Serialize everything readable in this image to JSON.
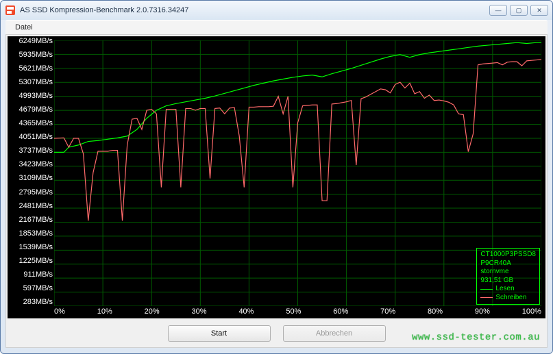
{
  "window": {
    "title": "AS SSD Kompression-Benchmark 2.0.7316.34247",
    "buttons": {
      "minimize": "—",
      "maximize": "▢",
      "close": "✕"
    }
  },
  "menu": {
    "file": "Datei"
  },
  "chart": {
    "type": "line",
    "background_color": "#000000",
    "grid_color": "#005c00",
    "axis_color": "#ffffff",
    "label_fontsize": 11,
    "xlim": [
      0,
      100
    ],
    "xtick_step": 10,
    "ylim": [
      283,
      6249
    ],
    "y_ticks": [
      6249,
      5935,
      5621,
      5307,
      4993,
      4679,
      4365,
      4051,
      3737,
      3423,
      3109,
      2795,
      2481,
      2167,
      1853,
      1539,
      1225,
      911,
      597,
      283
    ],
    "y_unit": "MB/s",
    "x_ticks": [
      0,
      10,
      20,
      30,
      40,
      50,
      60,
      70,
      80,
      90,
      100
    ],
    "x_unit": "%",
    "series": [
      {
        "name": "Lesen",
        "color": "#00ff00",
        "line_width": 1.2,
        "points": [
          [
            0,
            3737
          ],
          [
            2,
            3737
          ],
          [
            3,
            3850
          ],
          [
            5,
            3900
          ],
          [
            7,
            3980
          ],
          [
            9,
            4000
          ],
          [
            11,
            4030
          ],
          [
            13,
            4060
          ],
          [
            15,
            4100
          ],
          [
            17,
            4250
          ],
          [
            19,
            4500
          ],
          [
            21,
            4680
          ],
          [
            23,
            4780
          ],
          [
            25,
            4830
          ],
          [
            27,
            4870
          ],
          [
            29,
            4910
          ],
          [
            31,
            4950
          ],
          [
            33,
            5000
          ],
          [
            35,
            5060
          ],
          [
            37,
            5120
          ],
          [
            39,
            5180
          ],
          [
            41,
            5240
          ],
          [
            43,
            5290
          ],
          [
            45,
            5340
          ],
          [
            47,
            5380
          ],
          [
            49,
            5420
          ],
          [
            51,
            5450
          ],
          [
            53,
            5470
          ],
          [
            55,
            5430
          ],
          [
            57,
            5500
          ],
          [
            59,
            5560
          ],
          [
            61,
            5620
          ],
          [
            63,
            5690
          ],
          [
            65,
            5760
          ],
          [
            67,
            5830
          ],
          [
            69,
            5890
          ],
          [
            71,
            5930
          ],
          [
            73,
            5870
          ],
          [
            75,
            5930
          ],
          [
            77,
            5970
          ],
          [
            79,
            6000
          ],
          [
            81,
            6030
          ],
          [
            83,
            6060
          ],
          [
            85,
            6090
          ],
          [
            87,
            6120
          ],
          [
            89,
            6140
          ],
          [
            91,
            6160
          ],
          [
            93,
            6180
          ],
          [
            95,
            6200
          ],
          [
            97,
            6180
          ],
          [
            99,
            6200
          ],
          [
            100,
            6200
          ]
        ]
      },
      {
        "name": "Schreiben",
        "color": "#ff6a6a",
        "line_width": 1.2,
        "points": [
          [
            0,
            4050
          ],
          [
            2,
            4060
          ],
          [
            3,
            3850
          ],
          [
            4,
            4050
          ],
          [
            5,
            4050
          ],
          [
            6,
            3700
          ],
          [
            7,
            2200
          ],
          [
            8,
            3280
          ],
          [
            9,
            3760
          ],
          [
            10,
            3760
          ],
          [
            11,
            3760
          ],
          [
            12,
            3780
          ],
          [
            13,
            3780
          ],
          [
            14,
            2200
          ],
          [
            15,
            3900
          ],
          [
            16,
            4480
          ],
          [
            17,
            4500
          ],
          [
            18,
            4250
          ],
          [
            19,
            4680
          ],
          [
            20,
            4700
          ],
          [
            21,
            4600
          ],
          [
            22,
            2950
          ],
          [
            23,
            4700
          ],
          [
            24,
            4700
          ],
          [
            25,
            4700
          ],
          [
            26,
            2950
          ],
          [
            27,
            4720
          ],
          [
            28,
            4720
          ],
          [
            29,
            4680
          ],
          [
            30,
            4720
          ],
          [
            31,
            4720
          ],
          [
            32,
            3150
          ],
          [
            33,
            4720
          ],
          [
            34,
            4730
          ],
          [
            35,
            4600
          ],
          [
            36,
            4730
          ],
          [
            37,
            4740
          ],
          [
            38,
            4100
          ],
          [
            39,
            2950
          ],
          [
            40,
            4750
          ],
          [
            41,
            4750
          ],
          [
            42,
            4760
          ],
          [
            43,
            4760
          ],
          [
            44,
            4760
          ],
          [
            45,
            4770
          ],
          [
            46,
            4993
          ],
          [
            47,
            4600
          ],
          [
            48,
            4993
          ],
          [
            49,
            2950
          ],
          [
            50,
            4400
          ],
          [
            51,
            4780
          ],
          [
            52,
            4790
          ],
          [
            53,
            4800
          ],
          [
            54,
            4800
          ],
          [
            55,
            2650
          ],
          [
            56,
            2650
          ],
          [
            57,
            4820
          ],
          [
            58,
            4830
          ],
          [
            59,
            4850
          ],
          [
            60,
            4870
          ],
          [
            61,
            4900
          ],
          [
            62,
            3450
          ],
          [
            63,
            4940
          ],
          [
            64,
            4980
          ],
          [
            65,
            5040
          ],
          [
            66,
            5100
          ],
          [
            67,
            5160
          ],
          [
            68,
            5140
          ],
          [
            69,
            5070
          ],
          [
            70,
            5260
          ],
          [
            71,
            5310
          ],
          [
            72,
            5180
          ],
          [
            73,
            5290
          ],
          [
            74,
            5050
          ],
          [
            75,
            5100
          ],
          [
            76,
            4950
          ],
          [
            77,
            5020
          ],
          [
            78,
            4900
          ],
          [
            79,
            4910
          ],
          [
            80,
            4890
          ],
          [
            81,
            4860
          ],
          [
            82,
            4800
          ],
          [
            83,
            4600
          ],
          [
            84,
            4580
          ],
          [
            85,
            3750
          ],
          [
            86,
            4150
          ],
          [
            87,
            5700
          ],
          [
            88,
            5720
          ],
          [
            89,
            5730
          ],
          [
            90,
            5740
          ],
          [
            91,
            5750
          ],
          [
            92,
            5700
          ],
          [
            93,
            5760
          ],
          [
            94,
            5770
          ],
          [
            95,
            5770
          ],
          [
            96,
            5680
          ],
          [
            97,
            5790
          ],
          [
            98,
            5800
          ],
          [
            99,
            5810
          ],
          [
            100,
            5820
          ]
        ]
      }
    ]
  },
  "legend": {
    "device_line1": "CT1000P3PSSD8",
    "device_line2": "P9CR40A",
    "device_line3": "stornvme",
    "capacity": "931,51 GB",
    "read_label": "Lesen",
    "write_label": "Schreiben",
    "read_color": "#00ff00",
    "write_color": "#ff6a6a"
  },
  "buttons": {
    "start": "Start",
    "abort": "Abbrechen"
  },
  "watermark": "www.ssd-tester.com.au"
}
